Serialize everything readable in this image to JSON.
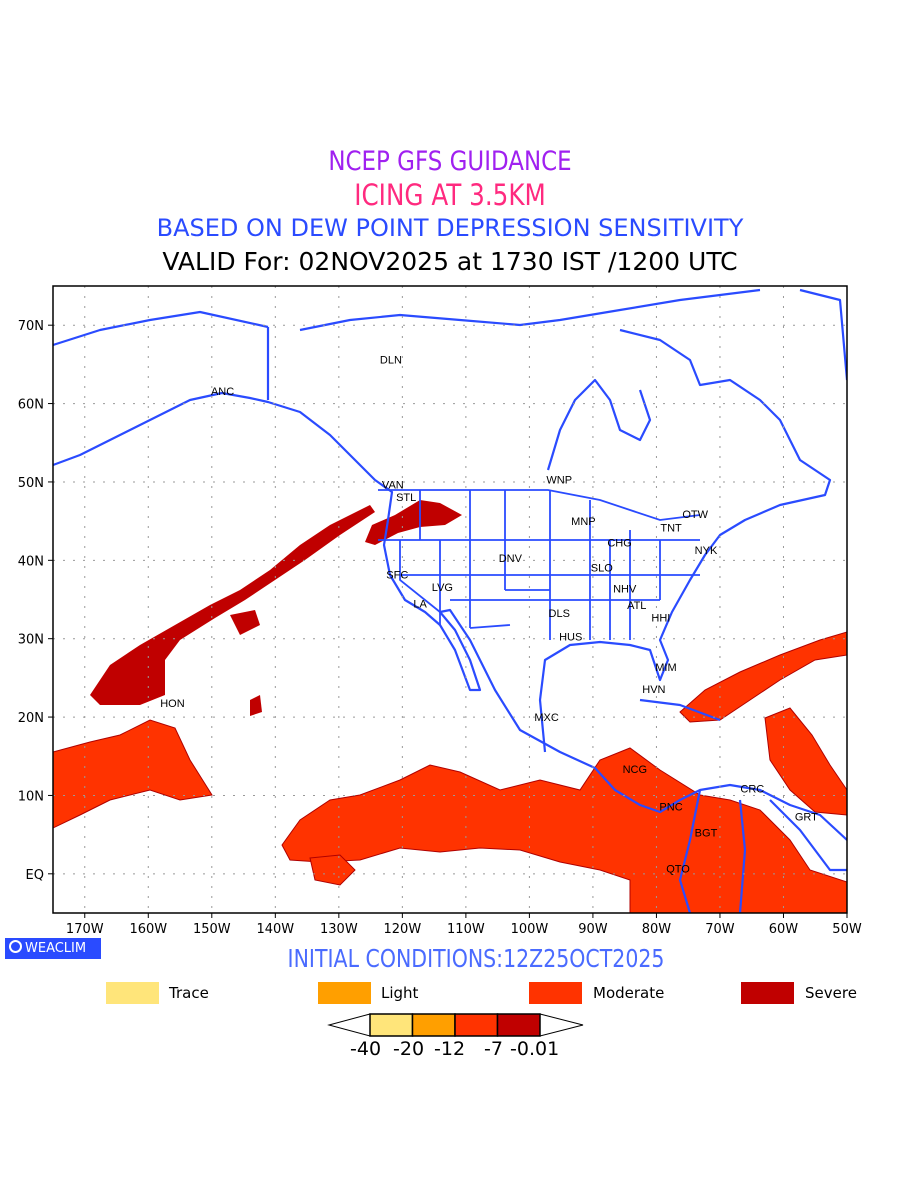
{
  "header": {
    "line1": "NCEP GFS GUIDANCE",
    "line2": "ICING AT 3.5KM",
    "line3": "BASED ON DEW POINT DEPRESSION SENSITIVITY",
    "line4": "VALID For: 02NOV2025 at 1730 IST /1200 UTC"
  },
  "map": {
    "lat_ticks": [
      "70N",
      "60N",
      "50N",
      "40N",
      "30N",
      "20N",
      "10N",
      "EQ"
    ],
    "lon_ticks": [
      "170W",
      "160W",
      "150W",
      "140W",
      "130W",
      "120W",
      "110W",
      "100W",
      "90W",
      "80W",
      "70W",
      "60W",
      "50W"
    ],
    "extent": {
      "lon": [
        -175,
        -50
      ],
      "lat": [
        -5,
        75
      ]
    },
    "cities": [
      {
        "name": "DLN",
        "lon": -121.8,
        "lat": 65.6
      },
      {
        "name": "ANC",
        "lon": -148.3,
        "lat": 61.6
      },
      {
        "name": "VAN",
        "lon": -121.5,
        "lat": 49.7
      },
      {
        "name": "STL",
        "lon": -119.4,
        "lat": 48.1
      },
      {
        "name": "WNP",
        "lon": -95.3,
        "lat": 50.3
      },
      {
        "name": "MNP",
        "lon": -91.5,
        "lat": 45.0
      },
      {
        "name": "TNT",
        "lon": -77.7,
        "lat": 44.2
      },
      {
        "name": "OTW",
        "lon": -73.9,
        "lat": 45.9
      },
      {
        "name": "CHG",
        "lon": -85.8,
        "lat": 42.3
      },
      {
        "name": "NYK",
        "lon": -72.2,
        "lat": 41.3
      },
      {
        "name": "DNV",
        "lon": -103.0,
        "lat": 40.3
      },
      {
        "name": "SLO",
        "lon": -88.6,
        "lat": 39.1
      },
      {
        "name": "SFC",
        "lon": -120.8,
        "lat": 38.2
      },
      {
        "name": "LVG",
        "lon": -113.7,
        "lat": 36.6
      },
      {
        "name": "NHV",
        "lon": -85.0,
        "lat": 36.4
      },
      {
        "name": "LA",
        "lon": -117.2,
        "lat": 34.5
      },
      {
        "name": "ATL",
        "lon": -83.1,
        "lat": 34.3
      },
      {
        "name": "HHI",
        "lon": -79.3,
        "lat": 32.7
      },
      {
        "name": "DLS",
        "lon": -95.3,
        "lat": 33.3
      },
      {
        "name": "HUS",
        "lon": -93.5,
        "lat": 30.3
      },
      {
        "name": "MIM",
        "lon": -78.5,
        "lat": 26.4
      },
      {
        "name": "HVN",
        "lon": -80.4,
        "lat": 23.6
      },
      {
        "name": "HON",
        "lon": -156.2,
        "lat": 21.8
      },
      {
        "name": "MXC",
        "lon": -97.3,
        "lat": 20.0
      },
      {
        "name": "NCG",
        "lon": -83.4,
        "lat": 13.4
      },
      {
        "name": "CRC",
        "lon": -64.9,
        "lat": 10.9
      },
      {
        "name": "PNC",
        "lon": -77.7,
        "lat": 8.6
      },
      {
        "name": "GRT",
        "lon": -56.4,
        "lat": 7.3
      },
      {
        "name": "BGT",
        "lon": -72.2,
        "lat": 5.3
      },
      {
        "name": "QTO",
        "lon": -76.6,
        "lat": 0.7
      }
    ]
  },
  "footer": {
    "brand": "WEACLIM",
    "initial_conditions": "INITIAL CONDITIONS:12Z25OCT2025"
  },
  "legend": [
    {
      "label": "Trace",
      "color": "#ffe57a"
    },
    {
      "label": "Light",
      "color": "#ff9f00"
    },
    {
      "label": "Moderate",
      "color": "#ff3300"
    },
    {
      "label": "Severe",
      "color": "#c00000"
    }
  ],
  "colorbar": {
    "labels": [
      "-40",
      "-20",
      "-12",
      "-7",
      "-0.01"
    ],
    "colors": [
      "#ffe57a",
      "#ff9f00",
      "#ff3300",
      "#c00000"
    ]
  },
  "colors": {
    "coastline": "#2a4bff",
    "moderate": "#ff3300",
    "severe": "#c00000"
  }
}
